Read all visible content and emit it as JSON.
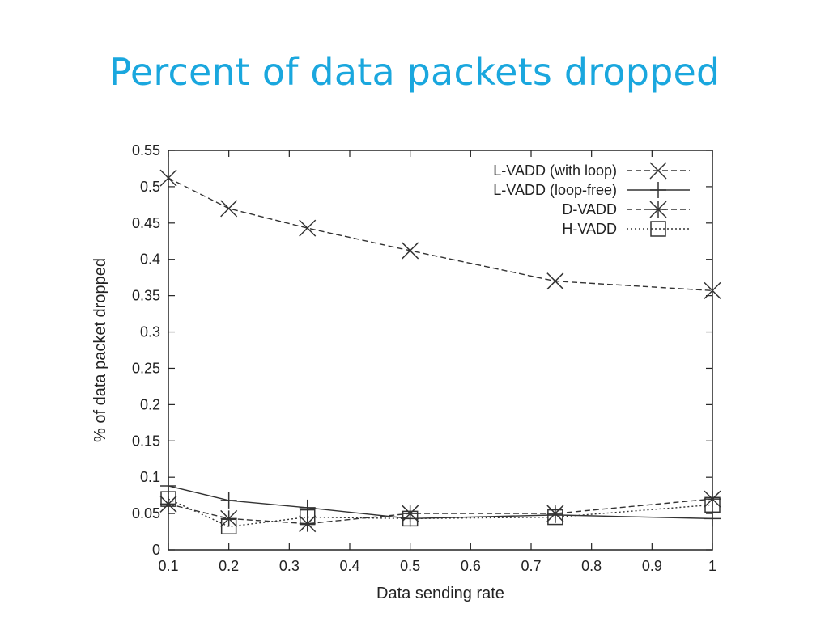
{
  "slide": {
    "title": "Percent of data packets dropped"
  },
  "chart_data": {
    "type": "line",
    "xlabel": "Data sending rate",
    "ylabel": "% of data packet dropped",
    "xlim": [
      0.1,
      1
    ],
    "ylim": [
      0,
      0.55
    ],
    "xticks": [
      "0.1",
      "0.2",
      "0.3",
      "0.4",
      "0.5",
      "0.6",
      "0.7",
      "0.8",
      "0.9",
      "1"
    ],
    "yticks": [
      "0",
      "0.05",
      "0.1",
      "0.15",
      "0.2",
      "0.25",
      "0.3",
      "0.35",
      "0.4",
      "0.45",
      "0.5",
      "0.55"
    ],
    "grid": false,
    "legend_position": "top-right",
    "series": [
      {
        "name": "L-VADD (with loop)",
        "marker": "x",
        "line_style": "dashed",
        "x": [
          0.1,
          0.2,
          0.33,
          0.5,
          0.74,
          1.0
        ],
        "y": [
          0.512,
          0.47,
          0.443,
          0.412,
          0.37,
          0.357
        ]
      },
      {
        "name": "L-VADD (loop-free)",
        "marker": "plus",
        "line_style": "solid",
        "x": [
          0.1,
          0.2,
          0.33,
          0.5,
          0.74,
          1.0
        ],
        "y": [
          0.088,
          0.068,
          0.058,
          0.043,
          0.048,
          0.043
        ]
      },
      {
        "name": "D-VADD",
        "marker": "star",
        "line_style": "dashed",
        "x": [
          0.1,
          0.2,
          0.33,
          0.5,
          0.74,
          1.0
        ],
        "y": [
          0.063,
          0.043,
          0.036,
          0.05,
          0.05,
          0.07
        ]
      },
      {
        "name": "H-VADD",
        "marker": "square",
        "line_style": "dotted",
        "x": [
          0.1,
          0.2,
          0.33,
          0.5,
          0.74,
          1.0
        ],
        "y": [
          0.07,
          0.032,
          0.045,
          0.043,
          0.045,
          0.062
        ]
      }
    ]
  }
}
